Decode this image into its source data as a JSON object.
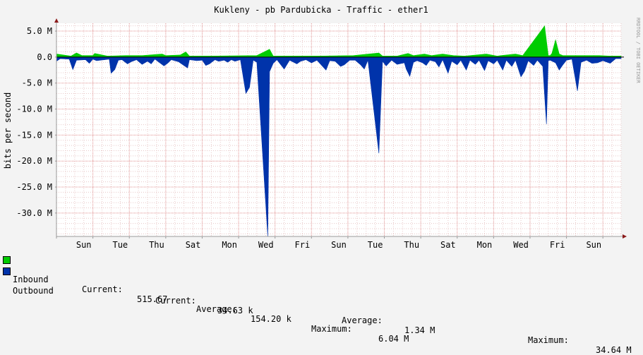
{
  "chart_data": {
    "type": "area",
    "title": "Kukleny - pb Pardubicka - Traffic - ether1",
    "ylabel": "bits per second",
    "watermark": "RRDTOOL / TOBI OETIKER",
    "ylim": [
      -34.5,
      6.5
    ],
    "y_ticks": [
      {
        "v": 5,
        "label": "5.0 M"
      },
      {
        "v": 0,
        "label": "0.0"
      },
      {
        "v": -5,
        "label": "-5.0 M"
      },
      {
        "v": -10,
        "label": "-10.0 M"
      },
      {
        "v": -15,
        "label": "-15.0 M"
      },
      {
        "v": -20,
        "label": "-20.0 M"
      },
      {
        "v": -25,
        "label": "-25.0 M"
      },
      {
        "v": -30,
        "label": "-30.0 M"
      }
    ],
    "xlim": [
      0,
      15.5
    ],
    "x_ticks": [
      {
        "v": 0.75,
        "label": "Sun"
      },
      {
        "v": 1.75,
        "label": "Tue"
      },
      {
        "v": 2.75,
        "label": "Thu"
      },
      {
        "v": 3.75,
        "label": "Sat"
      },
      {
        "v": 4.75,
        "label": "Mon"
      },
      {
        "v": 5.75,
        "label": "Wed"
      },
      {
        "v": 6.75,
        "label": "Fri"
      },
      {
        "v": 7.75,
        "label": "Sun"
      },
      {
        "v": 8.75,
        "label": "Tue"
      },
      {
        "v": 9.75,
        "label": "Thu"
      },
      {
        "v": 10.75,
        "label": "Sat"
      },
      {
        "v": 11.75,
        "label": "Mon"
      },
      {
        "v": 12.75,
        "label": "Wed"
      },
      {
        "v": 13.75,
        "label": "Fri"
      },
      {
        "v": 14.75,
        "label": "Sun"
      }
    ],
    "colors": {
      "inbound": "#00cc00",
      "outbound": "#0033aa",
      "background": "#f3f3f3",
      "plot_background": "#ffffff",
      "grid_minor": "#e8c8c8",
      "grid_major": "#e09090",
      "axis": "#999999",
      "arrow": "#8b1a1a"
    },
    "series": [
      {
        "name": "Inbound",
        "color": "#00cc00",
        "points": [
          [
            0.0,
            0.6
          ],
          [
            0.4,
            0.2
          ],
          [
            0.55,
            0.8
          ],
          [
            0.7,
            0.3
          ],
          [
            1.0,
            0.3
          ],
          [
            1.05,
            0.7
          ],
          [
            1.4,
            0.2
          ],
          [
            1.9,
            0.3
          ],
          [
            2.35,
            0.3
          ],
          [
            2.9,
            0.6
          ],
          [
            3.0,
            0.3
          ],
          [
            3.4,
            0.4
          ],
          [
            3.55,
            1.0
          ],
          [
            3.65,
            0.2
          ],
          [
            4.2,
            0.2
          ],
          [
            5.5,
            0.3
          ],
          [
            5.85,
            1.5
          ],
          [
            5.95,
            0.2
          ],
          [
            6.4,
            0.2
          ],
          [
            7.2,
            0.2
          ],
          [
            8.15,
            0.3
          ],
          [
            8.85,
            0.8
          ],
          [
            8.95,
            0.2
          ],
          [
            9.35,
            0.2
          ],
          [
            9.65,
            0.7
          ],
          [
            9.8,
            0.3
          ],
          [
            10.1,
            0.6
          ],
          [
            10.3,
            0.3
          ],
          [
            10.6,
            0.6
          ],
          [
            10.9,
            0.3
          ],
          [
            11.2,
            0.2
          ],
          [
            11.8,
            0.6
          ],
          [
            12.1,
            0.2
          ],
          [
            12.2,
            0.3
          ],
          [
            12.6,
            0.6
          ],
          [
            12.8,
            0.3
          ],
          [
            13.4,
            6.0
          ],
          [
            13.5,
            0.3
          ],
          [
            13.55,
            0.3
          ],
          [
            13.6,
            0.7
          ],
          [
            13.7,
            3.3
          ],
          [
            13.8,
            0.6
          ],
          [
            13.9,
            0.3
          ],
          [
            14.3,
            0.3
          ],
          [
            14.55,
            0.3
          ],
          [
            14.9,
            0.3
          ],
          [
            15.2,
            0.2
          ],
          [
            15.5,
            0.2
          ]
        ]
      },
      {
        "name": "Outbound",
        "color": "#0033aa",
        "points": [
          [
            0.0,
            -0.8
          ],
          [
            0.1,
            -0.3
          ],
          [
            0.35,
            -0.4
          ],
          [
            0.45,
            -2.4
          ],
          [
            0.55,
            -0.6
          ],
          [
            0.8,
            -0.5
          ],
          [
            0.9,
            -1.2
          ],
          [
            1.0,
            -0.4
          ],
          [
            1.1,
            -0.7
          ],
          [
            1.45,
            -0.4
          ],
          [
            1.5,
            -3.1
          ],
          [
            1.6,
            -2.4
          ],
          [
            1.7,
            -0.6
          ],
          [
            1.8,
            -0.5
          ],
          [
            1.95,
            -1.3
          ],
          [
            2.05,
            -0.9
          ],
          [
            2.2,
            -0.5
          ],
          [
            2.35,
            -1.4
          ],
          [
            2.5,
            -0.8
          ],
          [
            2.6,
            -1.3
          ],
          [
            2.7,
            -0.4
          ],
          [
            2.95,
            -1.7
          ],
          [
            3.05,
            -1.2
          ],
          [
            3.15,
            -0.5
          ],
          [
            3.35,
            -0.9
          ],
          [
            3.5,
            -1.6
          ],
          [
            3.6,
            -2.1
          ],
          [
            3.65,
            -0.5
          ],
          [
            3.85,
            -0.7
          ],
          [
            4.0,
            -0.6
          ],
          [
            4.1,
            -1.6
          ],
          [
            4.2,
            -1.3
          ],
          [
            4.35,
            -0.5
          ],
          [
            4.45,
            -0.8
          ],
          [
            4.6,
            -0.6
          ],
          [
            4.7,
            -1.0
          ],
          [
            4.8,
            -0.5
          ],
          [
            4.9,
            -0.8
          ],
          [
            5.05,
            -0.5
          ],
          [
            5.2,
            -7.0
          ],
          [
            5.3,
            -5.8
          ],
          [
            5.4,
            -0.6
          ],
          [
            5.5,
            -1.0
          ],
          [
            5.8,
            -34.6
          ],
          [
            5.85,
            -2.8
          ],
          [
            5.95,
            -1.2
          ],
          [
            6.05,
            -0.5
          ],
          [
            6.25,
            -2.3
          ],
          [
            6.4,
            -0.6
          ],
          [
            6.6,
            -1.3
          ],
          [
            6.7,
            -0.8
          ],
          [
            6.85,
            -0.5
          ],
          [
            7.0,
            -1.1
          ],
          [
            7.15,
            -0.6
          ],
          [
            7.4,
            -2.5
          ],
          [
            7.5,
            -0.7
          ],
          [
            7.65,
            -0.8
          ],
          [
            7.8,
            -1.8
          ],
          [
            7.9,
            -1.5
          ],
          [
            8.05,
            -0.6
          ],
          [
            8.2,
            -0.6
          ],
          [
            8.35,
            -1.5
          ],
          [
            8.45,
            -2.3
          ],
          [
            8.55,
            -0.6
          ],
          [
            8.85,
            -18.5
          ],
          [
            8.95,
            -0.8
          ],
          [
            9.05,
            -1.7
          ],
          [
            9.2,
            -0.6
          ],
          [
            9.35,
            -1.4
          ],
          [
            9.55,
            -1.1
          ],
          [
            9.6,
            -2.3
          ],
          [
            9.7,
            -3.7
          ],
          [
            9.8,
            -1.0
          ],
          [
            9.9,
            -0.7
          ],
          [
            10.05,
            -1.1
          ],
          [
            10.15,
            -1.6
          ],
          [
            10.25,
            -0.6
          ],
          [
            10.4,
            -0.9
          ],
          [
            10.5,
            -1.9
          ],
          [
            10.6,
            -0.5
          ],
          [
            10.75,
            -3.1
          ],
          [
            10.85,
            -0.8
          ],
          [
            11.0,
            -1.5
          ],
          [
            11.1,
            -0.6
          ],
          [
            11.25,
            -2.5
          ],
          [
            11.35,
            -0.6
          ],
          [
            11.5,
            -1.4
          ],
          [
            11.6,
            -0.6
          ],
          [
            11.75,
            -2.6
          ],
          [
            11.85,
            -0.7
          ],
          [
            12.0,
            -1.3
          ],
          [
            12.1,
            -0.6
          ],
          [
            12.25,
            -2.5
          ],
          [
            12.35,
            -0.6
          ],
          [
            12.5,
            -1.8
          ],
          [
            12.6,
            -0.6
          ],
          [
            12.75,
            -3.8
          ],
          [
            12.85,
            -2.7
          ],
          [
            12.95,
            -0.7
          ],
          [
            13.1,
            -1.6
          ],
          [
            13.2,
            -0.6
          ],
          [
            13.35,
            -1.8
          ],
          [
            13.5,
            -0.7
          ],
          [
            13.45,
            -12.9
          ],
          [
            13.55,
            -0.6
          ],
          [
            13.7,
            -1.1
          ],
          [
            13.8,
            -2.5
          ],
          [
            13.9,
            -1.5
          ],
          [
            14.0,
            -0.6
          ],
          [
            14.15,
            -0.4
          ],
          [
            14.3,
            -6.5
          ],
          [
            14.4,
            -1.0
          ],
          [
            14.55,
            -0.6
          ],
          [
            14.7,
            -1.2
          ],
          [
            14.85,
            -1.1
          ],
          [
            15.0,
            -0.7
          ],
          [
            15.2,
            -1.2
          ],
          [
            15.35,
            -0.3
          ],
          [
            15.5,
            -0.3
          ]
        ]
      }
    ]
  },
  "legend": [
    {
      "name": "Inbound",
      "color": "#00cc00",
      "current_label": "Current:",
      "current": "515.67",
      "average_label": "Average:",
      "average": "154.20 k",
      "maximum_label": "Maximum:",
      "maximum": "6.04 M"
    },
    {
      "name": "Outbound",
      "color": "#0033aa",
      "current_label": "Current:",
      "current": "34.63 k",
      "average_label": "Average:",
      "average": "1.34 M",
      "maximum_label": "Maximum:",
      "maximum": "34.64 M"
    }
  ]
}
